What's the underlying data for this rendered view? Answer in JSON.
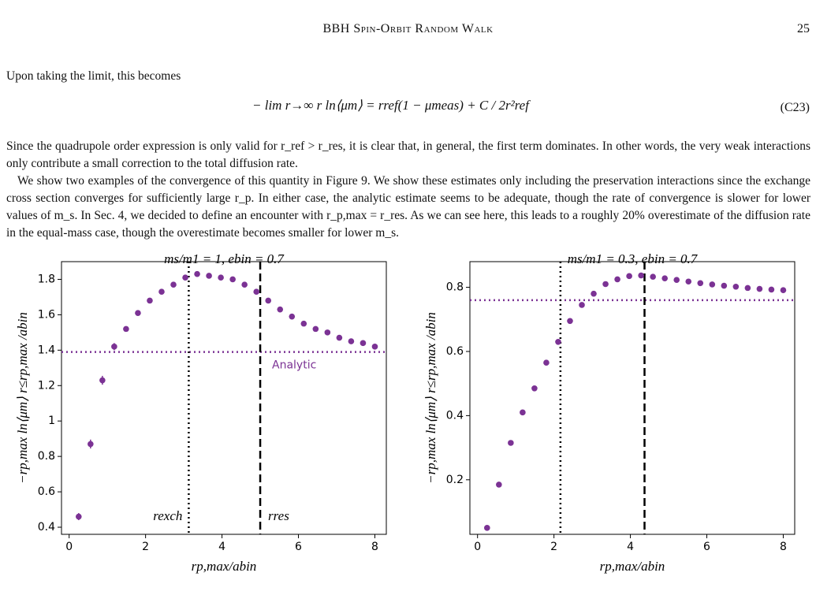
{
  "header": {
    "title": "BBH Spin-Orbit Random Walk",
    "page": "25"
  },
  "paragraphs": [
    "Upon taking the limit, this becomes",
    "Since the quadrupole order expression is only valid for r_ref > r_res, it is clear that, in general, the first term dominates. In other words, the very weak interactions only contribute a small correction to the total diffusion rate.",
    "We show two examples of the convergence of this quantity in Figure 9. We show these estimates only including the preservation interactions since the exchange cross section converges for sufficiently large r_p. In either case, the analytic estimate seems to be adequate, though the rate of convergence is slower for lower values of m_s. In Sec. 4, we decided to define an encounter with r_p,max = r_res. As we can see here, this leads to a roughly 20% overestimate of the diffusion rate in the equal-mass case, though the overestimate becomes smaller for lower m_s."
  ],
  "equation": {
    "text": "− lim r→∞ r ln⟨μm⟩ = rref(1 − μmeas) + C / 2r²ref",
    "number": "(C23)"
  },
  "chart_data": [
    {
      "type": "scatter",
      "title": "ms/m1 = 1, ebin = 0.7",
      "x_label": "rp,max/abin",
      "y_label": "−rp,max ln⟨μm⟩ r≤rp,max /abin",
      "color": "#7b3294",
      "x": [
        0.25,
        0.56,
        0.87,
        1.18,
        1.49,
        1.8,
        2.11,
        2.42,
        2.73,
        3.04,
        3.35,
        3.66,
        3.97,
        4.28,
        4.59,
        4.9,
        5.21,
        5.52,
        5.83,
        6.14,
        6.45,
        6.76,
        7.07,
        7.38,
        7.69,
        8.0
      ],
      "values": [
        0.46,
        0.87,
        1.23,
        1.42,
        1.52,
        1.61,
        1.68,
        1.73,
        1.77,
        1.81,
        1.83,
        1.82,
        1.81,
        1.8,
        1.77,
        1.73,
        1.68,
        1.63,
        1.59,
        1.55,
        1.52,
        1.5,
        1.47,
        1.45,
        1.44,
        1.42
      ],
      "errors": [
        0.02,
        0.025,
        0.025,
        0.02,
        0.015,
        0.012,
        0.01,
        0.01,
        0.01,
        0.01,
        0.01,
        0.01,
        0.01,
        0.01,
        0.01,
        0.01,
        0.01,
        0.01,
        0.01,
        0.01,
        0.01,
        0.01,
        0.01,
        0.01,
        0.01,
        0.01
      ],
      "xlim": [
        -0.2,
        8.3
      ],
      "ylim": [
        0.36,
        1.9
      ],
      "xticks": [
        0,
        2,
        4,
        6,
        8
      ],
      "yticks": [
        0.4,
        0.6,
        0.8,
        1.0,
        1.2,
        1.4,
        1.6,
        1.8
      ],
      "analytic": {
        "value": 1.39,
        "label": "Analytic"
      },
      "vlines": [
        {
          "value": 3.13,
          "style": "dotted",
          "label": "rexch"
        },
        {
          "value": 5.0,
          "style": "dashed",
          "label": "rres"
        }
      ]
    },
    {
      "type": "scatter",
      "title": "ms/m1 = 0.3, ebin = 0.7",
      "x_label": "rp,max/abin",
      "y_label": "−rp,max ln⟨μm⟩ r≤rp,max /abin",
      "color": "#7b3294",
      "x": [
        0.25,
        0.56,
        0.87,
        1.18,
        1.49,
        1.8,
        2.11,
        2.42,
        2.73,
        3.04,
        3.35,
        3.66,
        3.97,
        4.28,
        4.59,
        4.9,
        5.21,
        5.52,
        5.83,
        6.14,
        6.45,
        6.76,
        7.07,
        7.38,
        7.69,
        8.0
      ],
      "values": [
        0.05,
        0.185,
        0.315,
        0.41,
        0.485,
        0.565,
        0.63,
        0.695,
        0.745,
        0.78,
        0.81,
        0.825,
        0.835,
        0.837,
        0.833,
        0.828,
        0.823,
        0.818,
        0.813,
        0.809,
        0.805,
        0.802,
        0.798,
        0.795,
        0.793,
        0.791
      ],
      "xlim": [
        -0.2,
        8.3
      ],
      "ylim": [
        0.03,
        0.88
      ],
      "xticks": [
        0,
        2,
        4,
        6,
        8
      ],
      "yticks": [
        0.2,
        0.4,
        0.6,
        0.8
      ],
      "analytic": {
        "value": 0.76
      },
      "vlines": [
        {
          "value": 2.17,
          "style": "dotted"
        },
        {
          "value": 4.37,
          "style": "dashed"
        }
      ]
    }
  ]
}
